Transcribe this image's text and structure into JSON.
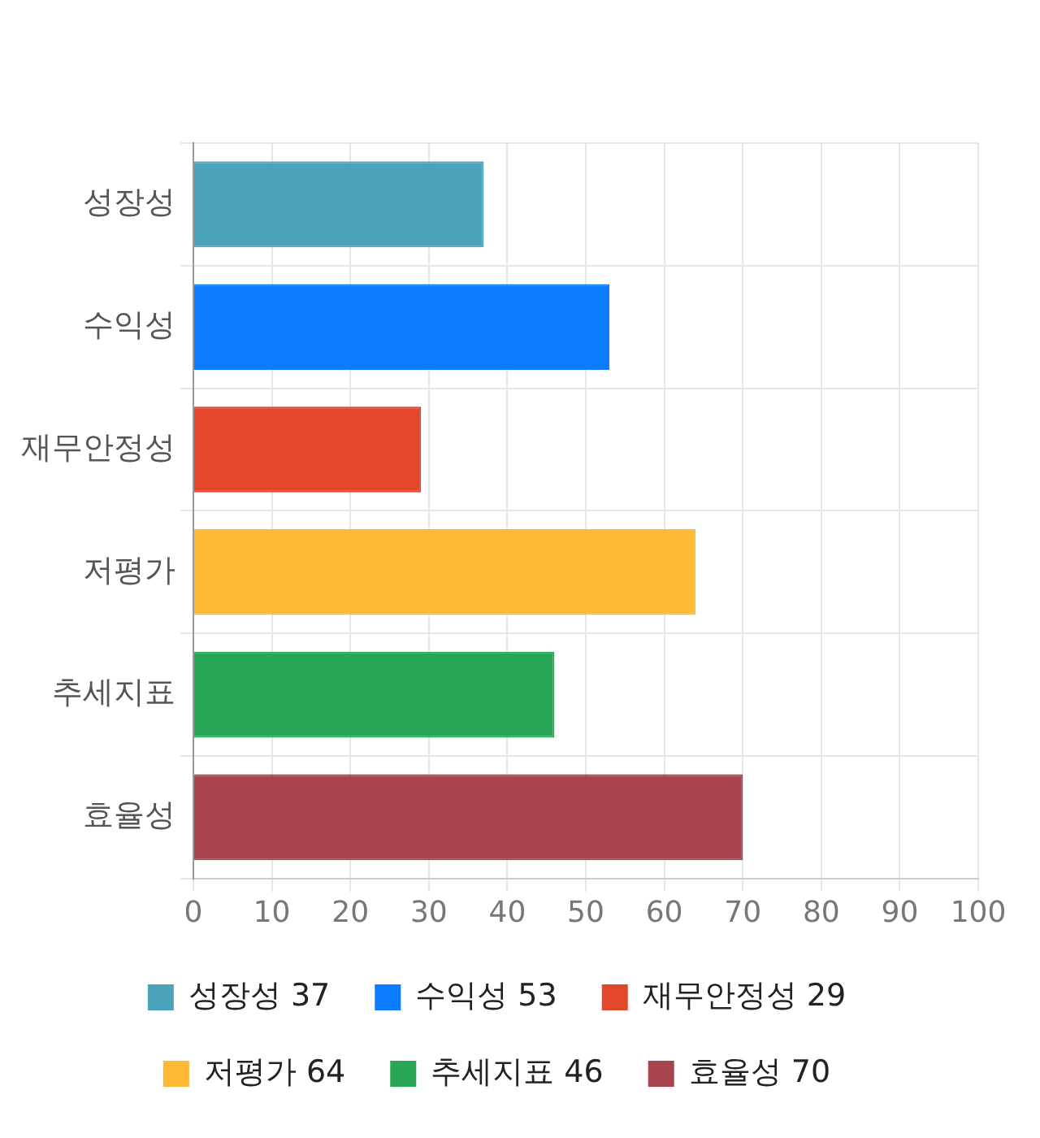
{
  "chart_data": {
    "type": "bar",
    "orientation": "horizontal",
    "stacked": true,
    "categories": [
      "성장성",
      "수익성",
      "재무안정성",
      "저평가",
      "추세지표",
      "효율성"
    ],
    "series": [
      {
        "name": "성장성 37",
        "color": "#4ba3bb",
        "values": [
          37,
          null,
          null,
          null,
          null,
          null
        ]
      },
      {
        "name": "수익성 53",
        "color": "#0b7bff",
        "values": [
          null,
          53,
          null,
          null,
          null,
          null
        ]
      },
      {
        "name": "재무안정성 29",
        "color": "#e2472b",
        "values": [
          null,
          null,
          29,
          null,
          null,
          null
        ]
      },
      {
        "name": "저평가 64",
        "color": "#ffb935",
        "values": [
          null,
          null,
          null,
          64,
          null,
          null
        ]
      },
      {
        "name": "추세지표 46",
        "color": "#2aa657",
        "values": [
          null,
          null,
          null,
          null,
          46,
          null
        ]
      },
      {
        "name": "효율성 70",
        "color": "#a8434f",
        "values": [
          null,
          null,
          null,
          null,
          null,
          70
        ]
      }
    ],
    "xlim": [
      0,
      100
    ],
    "xticks": [
      0,
      10,
      20,
      30,
      40,
      50,
      60,
      70,
      80,
      90,
      100
    ],
    "grid": true,
    "legend": "bottom"
  }
}
